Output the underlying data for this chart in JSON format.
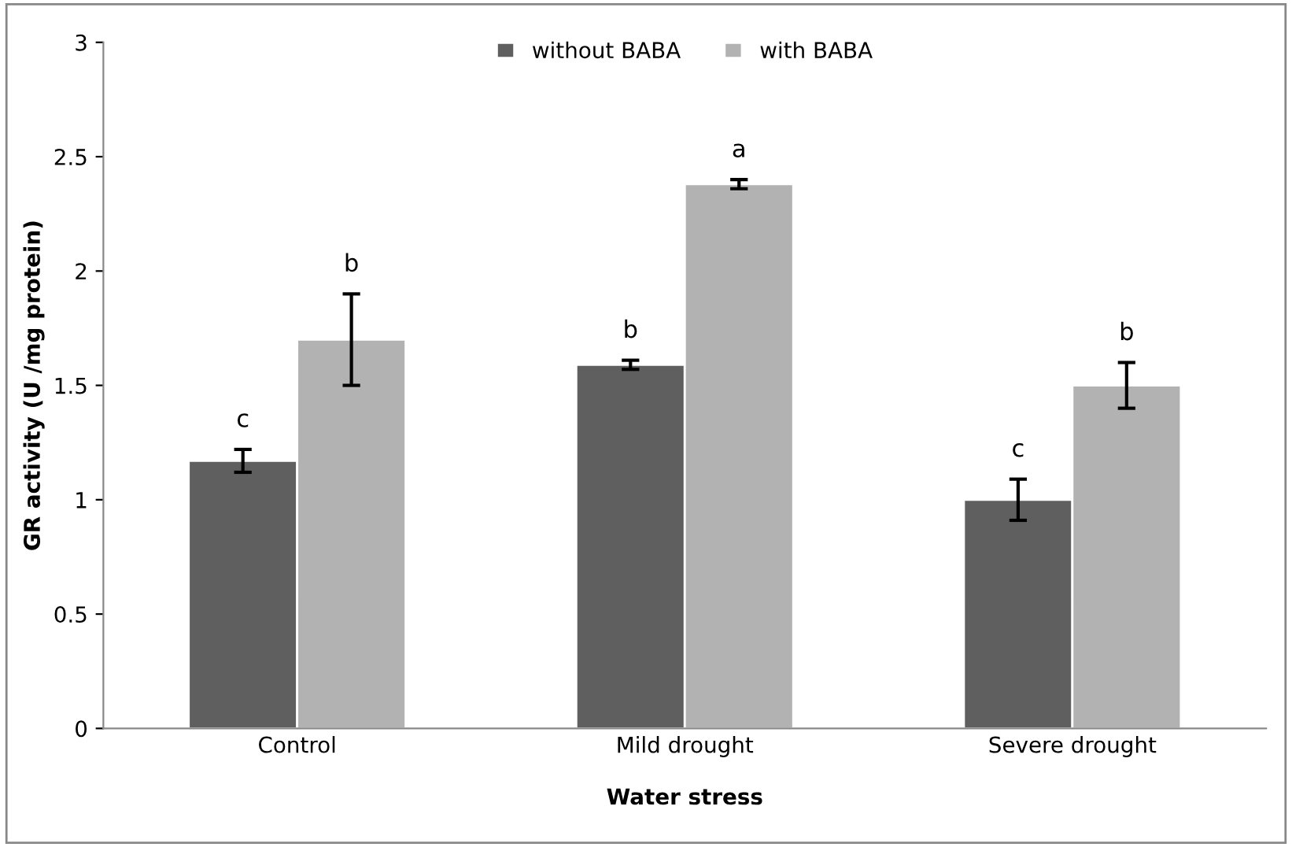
{
  "chart_data": {
    "type": "bar",
    "xlabel": "Water stress",
    "ylabel": "GR activity (U /mg protein)",
    "categories": [
      "Control",
      "Mild drought",
      "Severe drought"
    ],
    "series": [
      {
        "name": "without BABA",
        "color": "#5f5f5f",
        "values": [
          1.17,
          1.59,
          1.0
        ],
        "errors": [
          0.05,
          0.02,
          0.09
        ]
      },
      {
        "name": "with BABA",
        "color": "#b2b2b2",
        "values": [
          1.7,
          2.38,
          1.5
        ],
        "errors": [
          0.2,
          0.02,
          0.1
        ]
      }
    ],
    "ylim": [
      0,
      3
    ],
    "yticks": [
      0,
      0.5,
      1,
      1.5,
      2,
      2.5,
      3
    ],
    "grid": false,
    "legend": "top",
    "annotations": [
      "c",
      "b",
      "b",
      "a",
      "c",
      "b"
    ]
  }
}
